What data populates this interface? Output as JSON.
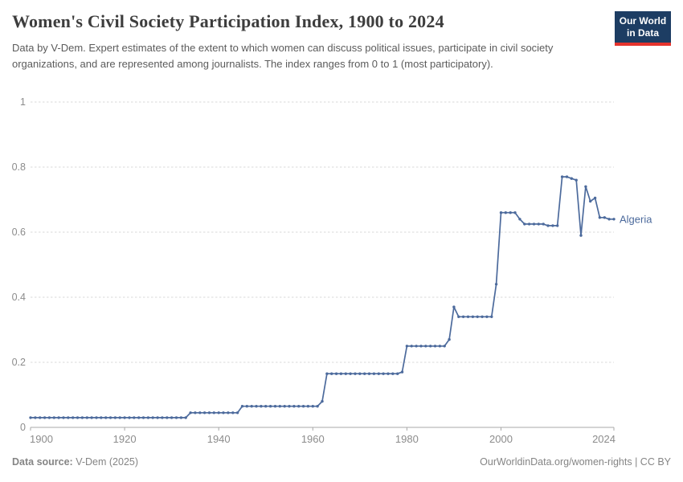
{
  "header": {
    "title": "Women's Civil Society Participation Index, 1900 to 2024",
    "subtitle": "Data by V-Dem. Expert estimates of the extent to which women can discuss political issues, participate in civil society organizations, and are represented among journalists. The index ranges from 0 to 1 (most participatory).",
    "logo": {
      "line1": "Our World",
      "line2": "in Data"
    }
  },
  "chart_data": {
    "type": "line",
    "title": "Women's Civil Society Participation Index, 1900 to 2024",
    "series_label": "Algeria",
    "x_start": 1900,
    "x_end": 2024,
    "x_step": 1,
    "values": [
      0.03,
      0.03,
      0.03,
      0.03,
      0.03,
      0.03,
      0.03,
      0.03,
      0.03,
      0.03,
      0.03,
      0.03,
      0.03,
      0.03,
      0.03,
      0.03,
      0.03,
      0.03,
      0.03,
      0.03,
      0.03,
      0.03,
      0.03,
      0.03,
      0.03,
      0.03,
      0.03,
      0.03,
      0.03,
      0.03,
      0.03,
      0.03,
      0.03,
      0.03,
      0.045,
      0.045,
      0.045,
      0.045,
      0.045,
      0.045,
      0.045,
      0.045,
      0.045,
      0.045,
      0.045,
      0.065,
      0.065,
      0.065,
      0.065,
      0.065,
      0.065,
      0.065,
      0.065,
      0.065,
      0.065,
      0.065,
      0.065,
      0.065,
      0.065,
      0.065,
      0.065,
      0.065,
      0.08,
      0.165,
      0.165,
      0.165,
      0.165,
      0.165,
      0.165,
      0.165,
      0.165,
      0.165,
      0.165,
      0.165,
      0.165,
      0.165,
      0.165,
      0.165,
      0.165,
      0.17,
      0.25,
      0.25,
      0.25,
      0.25,
      0.25,
      0.25,
      0.25,
      0.25,
      0.25,
      0.27,
      0.37,
      0.34,
      0.34,
      0.34,
      0.34,
      0.34,
      0.34,
      0.34,
      0.34,
      0.44,
      0.66,
      0.66,
      0.66,
      0.66,
      0.64,
      0.625,
      0.625,
      0.625,
      0.625,
      0.625,
      0.62,
      0.62,
      0.62,
      0.77,
      0.77,
      0.765,
      0.76,
      0.59,
      0.74,
      0.695,
      0.705,
      0.645,
      0.645,
      0.64,
      0.64
    ],
    "ylim": [
      0,
      1
    ],
    "yticks": [
      0,
      0.2,
      0.4,
      0.6,
      0.8,
      1
    ],
    "ytick_labels": [
      "0",
      "0.2",
      "0.4",
      "0.6",
      "0.8",
      "1"
    ],
    "xticks": [
      1900,
      1920,
      1940,
      1960,
      1980,
      2000,
      2024
    ],
    "grid": "horizontal-dashed",
    "legend_position": "end-of-line-label",
    "xlabel": "",
    "ylabel": "",
    "line_color": "#4C6A9C"
  },
  "colors": {
    "line": "#4C6A9C",
    "grid": "#dadada",
    "axis": "#a8a8a8",
    "tick_label": "#8c8c8c",
    "title": "#3d3d3d",
    "subtitle": "#5b5b5b",
    "footer": "#858585",
    "logo_bg": "#1d3d63",
    "logo_red": "#e5332d"
  },
  "footer": {
    "source_label": "Data source:",
    "source_value": " V-Dem (2025)",
    "right_text": "OurWorldinData.org/women-rights | CC BY"
  }
}
